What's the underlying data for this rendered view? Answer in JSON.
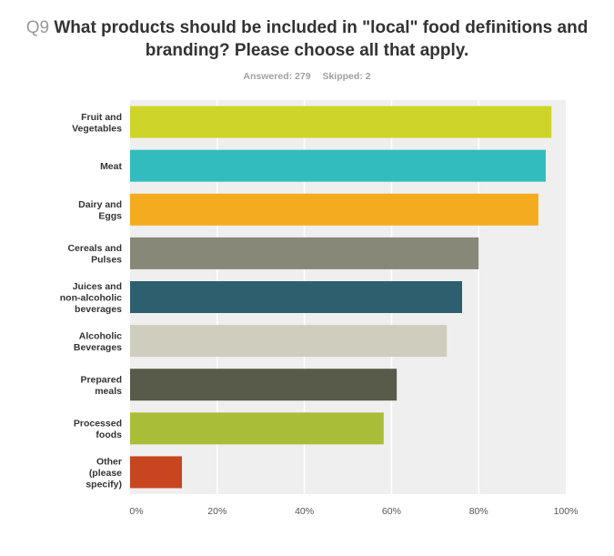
{
  "question": {
    "number": "Q9",
    "text_line1": "What products should be included in \"local\" food definitions and",
    "text_line2": "branding? Please choose all that apply."
  },
  "stats": {
    "answered": "Answered: 279",
    "skipped": "Skipped: 2"
  },
  "chart_data": {
    "type": "bar",
    "orientation": "horizontal",
    "title": "What products should be included in \"local\" food definitions and branding? Please choose all that apply.",
    "xlabel": "",
    "ylabel": "",
    "xlim": [
      0,
      100
    ],
    "grid": true,
    "legend": "none",
    "x_ticks": [
      "0%",
      "20%",
      "40%",
      "60%",
      "80%",
      "100%"
    ],
    "categories": [
      [
        "Fruit and",
        "Vegetables"
      ],
      [
        "Meat"
      ],
      [
        "Dairy and",
        "Eggs"
      ],
      [
        "Cereals and",
        "Pulses"
      ],
      [
        "Juices and",
        "non-alcoholic",
        "beverages"
      ],
      [
        "Alcoholic",
        "Beverages"
      ],
      [
        "Prepared",
        "meals"
      ],
      [
        "Processed",
        "foods"
      ],
      [
        "Other",
        "(please",
        "specify)"
      ]
    ],
    "values": [
      96.7,
      95.4,
      93.7,
      80.0,
      76.2,
      72.7,
      61.2,
      58.2,
      11.9
    ],
    "colors": [
      "#cfd42a",
      "#32bcbe",
      "#f5ab1f",
      "#878877",
      "#2d5f6e",
      "#cfcdbe",
      "#585a4a",
      "#a9bd38",
      "#c7451f"
    ],
    "plot_background": "#efefef",
    "gridline_color": "#ffffff"
  }
}
